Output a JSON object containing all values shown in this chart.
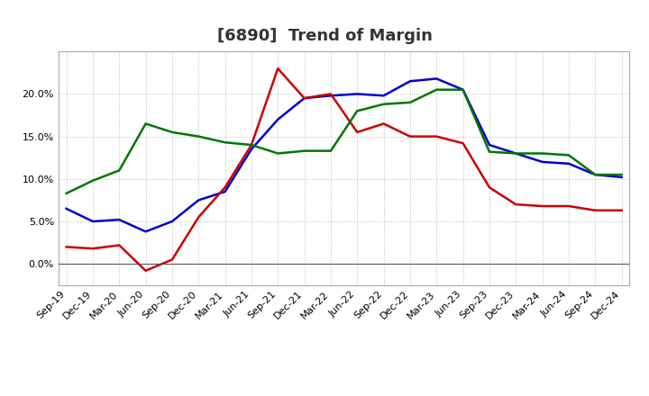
{
  "title": "[6890]  Trend of Margin",
  "labels": [
    "Sep-19",
    "Dec-19",
    "Mar-20",
    "Jun-20",
    "Sep-20",
    "Dec-20",
    "Mar-21",
    "Jun-21",
    "Sep-21",
    "Dec-21",
    "Mar-22",
    "Jun-22",
    "Sep-22",
    "Dec-22",
    "Mar-23",
    "Jun-23",
    "Sep-23",
    "Dec-23",
    "Mar-24",
    "Jun-24",
    "Sep-24",
    "Dec-24"
  ],
  "ordinary_income": [
    6.5,
    5.0,
    5.2,
    3.8,
    5.0,
    7.5,
    8.5,
    13.5,
    17.0,
    19.5,
    19.8,
    20.0,
    19.8,
    21.5,
    21.8,
    20.5,
    14.0,
    13.0,
    12.0,
    11.8,
    10.5,
    10.2
  ],
  "net_income": [
    2.0,
    1.8,
    2.2,
    -0.8,
    0.5,
    5.5,
    9.0,
    14.0,
    23.0,
    19.5,
    20.0,
    15.5,
    16.5,
    15.0,
    15.0,
    14.2,
    9.0,
    7.0,
    6.8,
    6.8,
    6.3,
    6.3
  ],
  "operating_cashflow": [
    8.3,
    9.8,
    11.0,
    16.5,
    15.5,
    15.0,
    14.3,
    14.0,
    13.0,
    13.3,
    13.3,
    18.0,
    18.8,
    19.0,
    20.5,
    20.5,
    13.2,
    13.0,
    13.0,
    12.8,
    10.5,
    10.5
  ],
  "ordinary_income_color": "#0000cc",
  "net_income_color": "#cc0000",
  "operating_cashflow_color": "#007700",
  "ylim_min": -2.5,
  "ylim_max": 25.0,
  "yticks": [
    0.0,
    5.0,
    10.0,
    15.0,
    20.0
  ],
  "background_color": "#ffffff",
  "grid_color": "#bbbbbb",
  "linewidth": 1.8,
  "title_fontsize": 13,
  "tick_fontsize": 8,
  "legend_fontsize": 9
}
